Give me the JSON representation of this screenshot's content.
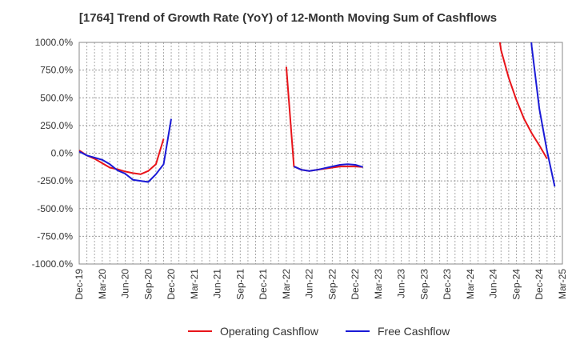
{
  "chart_data": {
    "type": "line",
    "title": "[1764]  Trend of Growth Rate (YoY) of 12-Month Moving Sum of Cashflows",
    "xlabel": "",
    "ylabel": "",
    "ylim": [
      -1000,
      1000
    ],
    "y_ticks": [
      "1000.0%",
      "750.0%",
      "500.0%",
      "250.0%",
      "0.0%",
      "-250.0%",
      "-500.0%",
      "-750.0%",
      "-1000.0%"
    ],
    "y_tick_values": [
      1000,
      750,
      500,
      250,
      0,
      -250,
      -500,
      -750,
      -1000
    ],
    "x_ticks": [
      "Dec-19",
      "Mar-20",
      "Jun-20",
      "Sep-20",
      "Dec-20",
      "Mar-21",
      "Jun-21",
      "Sep-21",
      "Dec-21",
      "Mar-22",
      "Jun-22",
      "Sep-22",
      "Dec-22",
      "Mar-23",
      "Jun-23",
      "Sep-23",
      "Dec-23",
      "Mar-24",
      "Jun-24",
      "Sep-24",
      "Dec-24",
      "Mar-25"
    ],
    "grid": true,
    "legend_position": "bottom",
    "series": [
      {
        "name": "Operating Cashflow",
        "color": "#e8141a",
        "points": [
          [
            0,
            25
          ],
          [
            1,
            -20
          ],
          [
            2,
            -50
          ],
          [
            3,
            -90
          ],
          [
            4,
            -130
          ],
          [
            5,
            -145
          ],
          [
            6,
            -165
          ],
          [
            7,
            -180
          ],
          [
            8,
            -190
          ],
          [
            9,
            -160
          ],
          [
            10,
            -100
          ],
          [
            11,
            130
          ],
          null,
          [
            27,
            780
          ],
          [
            28,
            -120
          ],
          [
            29,
            -150
          ],
          [
            30,
            -160
          ],
          [
            31,
            -150
          ],
          [
            32,
            -140
          ],
          [
            33,
            -130
          ],
          [
            34,
            -120
          ],
          [
            35,
            -120
          ],
          [
            36,
            -120
          ],
          [
            37,
            -125
          ],
          null,
          [
            54.85,
            1000
          ],
          [
            55,
            930
          ],
          [
            56,
            680
          ],
          [
            57,
            480
          ],
          [
            58,
            310
          ],
          [
            59,
            180
          ],
          [
            60,
            70
          ],
          [
            61,
            -50
          ]
        ]
      },
      {
        "name": "Free Cashflow",
        "color": "#1a1ad6",
        "points": [
          [
            0,
            15
          ],
          [
            1,
            -20
          ],
          [
            2,
            -40
          ],
          [
            3,
            -60
          ],
          [
            4,
            -100
          ],
          [
            5,
            -155
          ],
          [
            6,
            -185
          ],
          [
            7,
            -240
          ],
          [
            8,
            -250
          ],
          [
            9,
            -260
          ],
          [
            10,
            -190
          ],
          [
            11,
            -100
          ],
          [
            12,
            310
          ],
          null,
          [
            28,
            -120
          ],
          [
            29,
            -150
          ],
          [
            30,
            -160
          ],
          [
            31,
            -150
          ],
          [
            32,
            -135
          ],
          [
            33,
            -120
          ],
          [
            34,
            -105
          ],
          [
            35,
            -100
          ],
          [
            36,
            -105
          ],
          [
            37,
            -125
          ],
          null,
          [
            58.95,
            1000
          ],
          [
            59,
            960
          ],
          [
            60,
            400
          ],
          [
            61,
            20
          ],
          [
            62,
            -300
          ]
        ]
      }
    ]
  }
}
